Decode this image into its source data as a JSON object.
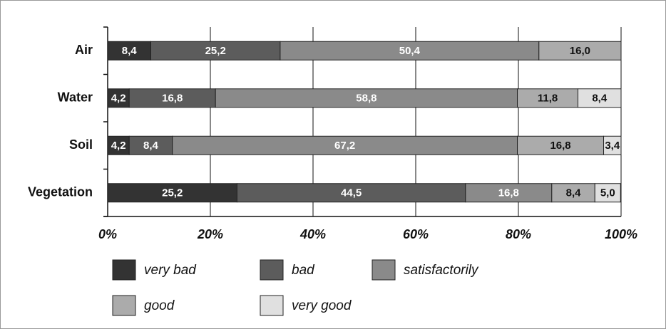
{
  "chart_data": {
    "type": "stacked-bar-horizontal",
    "categories": [
      "Air",
      "Water",
      "Soil",
      "Vegetation"
    ],
    "series": [
      {
        "name": "very bad",
        "color": "#333333",
        "values": [
          8.4,
          4.2,
          4.2,
          25.2
        ],
        "value_labels": [
          "8,4",
          "4,2",
          "4,2",
          "25,2"
        ]
      },
      {
        "name": "bad",
        "color": "#5c5c5c",
        "values": [
          25.2,
          16.8,
          8.4,
          44.5
        ],
        "value_labels": [
          "25,2",
          "16,8",
          "8,4",
          "44,5"
        ]
      },
      {
        "name": "satisfactorily",
        "color": "#8a8a8a",
        "values": [
          50.4,
          58.8,
          67.2,
          16.8
        ],
        "value_labels": [
          "50,4",
          "58,8",
          "67,2",
          "16,8"
        ]
      },
      {
        "name": "good",
        "color": "#ababab",
        "values": [
          16.0,
          11.8,
          16.8,
          8.4
        ],
        "value_labels": [
          "16,0",
          "11,8",
          "16,8",
          "8,4"
        ]
      },
      {
        "name": "very good",
        "color": "#e0e0e0",
        "values": [
          null,
          8.4,
          3.4,
          5.0
        ],
        "value_labels": [
          null,
          "8,4",
          "3,4",
          "5,0"
        ]
      }
    ],
    "xlim": [
      0,
      100
    ],
    "xticks": [
      {
        "value": 0,
        "label": "0%"
      },
      {
        "value": 20,
        "label": "20%"
      },
      {
        "value": 40,
        "label": "40%"
      },
      {
        "value": 60,
        "label": "60%"
      },
      {
        "value": 80,
        "label": "80%"
      },
      {
        "value": 100,
        "label": "100%"
      }
    ],
    "grid": true
  }
}
